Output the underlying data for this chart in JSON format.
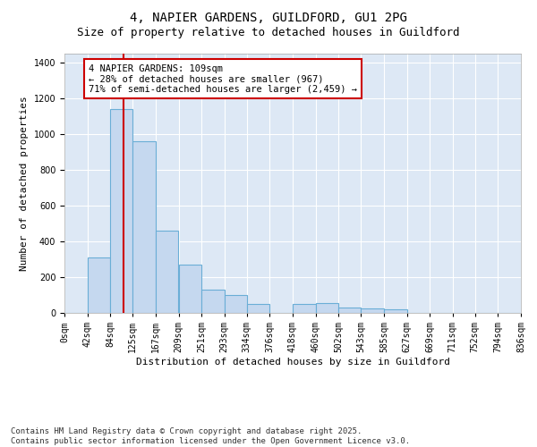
{
  "title_line1": "4, NAPIER GARDENS, GUILDFORD, GU1 2PG",
  "title_line2": "Size of property relative to detached houses in Guildford",
  "xlabel": "Distribution of detached houses by size in Guildford",
  "ylabel": "Number of detached properties",
  "bins": [
    "0sqm",
    "42sqm",
    "84sqm",
    "125sqm",
    "167sqm",
    "209sqm",
    "251sqm",
    "293sqm",
    "334sqm",
    "376sqm",
    "418sqm",
    "460sqm",
    "502sqm",
    "543sqm",
    "585sqm",
    "627sqm",
    "669sqm",
    "711sqm",
    "752sqm",
    "794sqm",
    "836sqm"
  ],
  "bin_edges": [
    0,
    42,
    84,
    125,
    167,
    209,
    251,
    293,
    334,
    376,
    418,
    460,
    502,
    543,
    585,
    627,
    669,
    711,
    752,
    794,
    836
  ],
  "bar_heights": [
    2,
    310,
    1140,
    960,
    460,
    270,
    130,
    100,
    50,
    2,
    50,
    55,
    30,
    25,
    20,
    2,
    2,
    2,
    2,
    2
  ],
  "bar_color": "#c5d8ef",
  "bar_edge_color": "#6aaed6",
  "red_line_x": 109,
  "red_line_color": "#cc0000",
  "ylim": [
    0,
    1450
  ],
  "yticks": [
    0,
    200,
    400,
    600,
    800,
    1000,
    1200,
    1400
  ],
  "annotation_text": "4 NAPIER GARDENS: 109sqm\n← 28% of detached houses are smaller (967)\n71% of semi-detached houses are larger (2,459) →",
  "annotation_box_color": "#ffffff",
  "annotation_border_color": "#cc0000",
  "bg_color": "#dde8f5",
  "footer_text": "Contains HM Land Registry data © Crown copyright and database right 2025.\nContains public sector information licensed under the Open Government Licence v3.0.",
  "grid_color": "#ffffff",
  "title_fontsize": 10,
  "subtitle_fontsize": 9,
  "axis_label_fontsize": 8,
  "tick_fontsize": 7,
  "annotation_fontsize": 7.5,
  "footer_fontsize": 6.5
}
